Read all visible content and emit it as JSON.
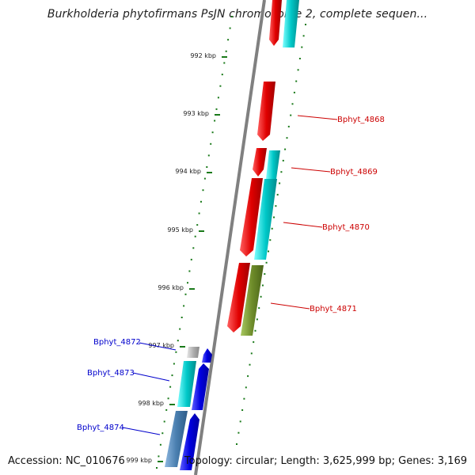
{
  "title": "Burkholderia phytofirmans PsJN chromosome 2, complete sequen...",
  "footer": {
    "accession": "Accession: NC_010676",
    "summary": "Topology: circular; Length: 3,625,999 bp; Genes: 3,169"
  },
  "ruler": {
    "ticks": [
      "992 kbp",
      "993 kbp",
      "994 kbp",
      "995 kbp",
      "996 kbp",
      "997 kbp",
      "998 kbp",
      "999 kbp"
    ],
    "tick_color": "#1a7a1a"
  },
  "gene_labels": {
    "right": [
      "Bphyt_4868",
      "Bphyt_4869",
      "Bphyt_4870",
      "Bphyt_4871"
    ],
    "left": [
      "Bphyt_4872",
      "Bphyt_4873",
      "Bphyt_4874"
    ]
  },
  "colors": {
    "backbone": "#808080",
    "gene_red": "#e00000",
    "cds_cyan": "#00c8c8",
    "cds_olive": "#6e8c2a",
    "gene_blue": "#0000e0",
    "cds_steel": "#4a7fb0",
    "cds_grey": "#b0b0b0",
    "label_red": "#cc0000",
    "label_blue": "#0000cc"
  }
}
